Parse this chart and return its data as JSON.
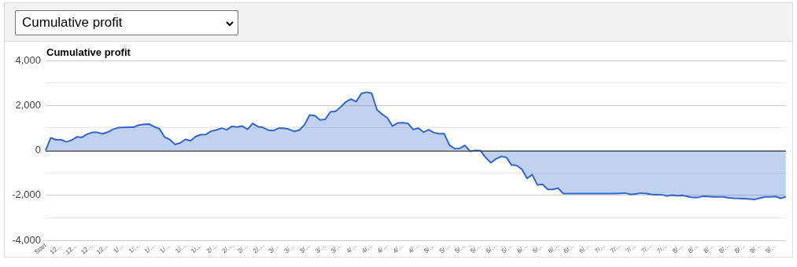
{
  "chart_data": {
    "type": "area",
    "title": "Cumulative profit",
    "subtitle": "Cumulative profit",
    "categories": [
      "Start",
      null,
      null,
      "12…",
      null,
      null,
      "12…",
      null,
      null,
      "12…",
      null,
      null,
      "12…",
      null,
      null,
      "1/…",
      null,
      null,
      "1/…",
      null,
      null,
      "1/…",
      null,
      null,
      "1/…",
      null,
      null,
      "1/…",
      null,
      null,
      "1/…",
      null,
      null,
      "2/…",
      null,
      null,
      "2/…",
      null,
      null,
      "2/…",
      null,
      null,
      "2/…",
      null,
      null,
      "3/…",
      null,
      null,
      "3/…",
      null,
      null,
      "3/…",
      null,
      null,
      "3/…",
      null,
      null,
      "3/…",
      null,
      null,
      "4/…",
      null,
      null,
      "4/…",
      null,
      null,
      "4/…",
      null,
      null,
      "4/…",
      null,
      null,
      "4/…",
      null,
      null,
      "5/…",
      null,
      null,
      "5/…",
      null,
      null,
      "5/…",
      null,
      null,
      "5/…",
      null,
      null,
      "5/…",
      null,
      null,
      "5/…",
      null,
      null,
      "6/…",
      null,
      null,
      "6/…",
      null,
      null,
      "6/…",
      null,
      null,
      "6/…",
      null,
      null,
      "6/…",
      null,
      null,
      "7/…",
      null,
      null,
      "7/…",
      null,
      null,
      "7/…",
      null,
      null,
      "7/…",
      null,
      null,
      "7/…",
      null,
      null,
      "8/…",
      null,
      null,
      "8/…",
      null,
      null,
      "8/…",
      null,
      null,
      "8/…",
      null,
      null,
      "8/…",
      null,
      null,
      "9/…",
      null,
      null,
      "9/…",
      null,
      null
    ],
    "series": [
      {
        "color": "#3366cc",
        "values": [
          0,
          560,
          470,
          470,
          380,
          450,
          600,
          580,
          720,
          800,
          800,
          740,
          810,
          940,
          1010,
          1020,
          1030,
          1030,
          1130,
          1160,
          1170,
          1050,
          960,
          590,
          480,
          260,
          330,
          490,
          430,
          620,
          700,
          710,
          860,
          910,
          990,
          920,
          1070,
          1040,
          1080,
          940,
          1200,
          1060,
          1020,
          900,
          880,
          990,
          990,
          940,
          850,
          900,
          1140,
          1570,
          1550,
          1350,
          1380,
          1710,
          1740,
          1930,
          2160,
          2280,
          2170,
          2530,
          2590,
          2540,
          1810,
          1610,
          1450,
          1080,
          1220,
          1230,
          1200,
          930,
          990,
          810,
          920,
          790,
          740,
          740,
          240,
          80,
          90,
          220,
          -40,
          0,
          -10,
          -320,
          -550,
          -380,
          -270,
          -310,
          -650,
          -670,
          -840,
          -1250,
          -1080,
          -1540,
          -1510,
          -1740,
          -1740,
          -1680,
          -1920,
          -1920,
          -1920,
          -1920,
          -1920,
          -1920,
          -1920,
          -1920,
          -1920,
          -1920,
          -1920,
          -1910,
          -1900,
          -1960,
          -1940,
          -1900,
          -1920,
          -1960,
          -1970,
          -1970,
          -2030,
          -1990,
          -2020,
          -2000,
          -2050,
          -2100,
          -2100,
          -2040,
          -2050,
          -2070,
          -2070,
          -2070,
          -2110,
          -2130,
          -2140,
          -2150,
          -2170,
          -2180,
          -2120,
          -2070,
          -2070,
          -2050,
          -2130,
          -2070
        ]
      }
    ],
    "ylim": [
      -4000,
      4000
    ],
    "yticks": [
      {
        "value": -4000,
        "label": "-4,000"
      },
      {
        "value": -3000,
        "label": null
      },
      {
        "value": -2000,
        "label": "-2,000"
      },
      {
        "value": -1000,
        "label": null
      },
      {
        "value": 0,
        "label": "0"
      },
      {
        "value": 1000,
        "label": null
      },
      {
        "value": 2000,
        "label": "2,000"
      },
      {
        "value": 3000,
        "label": null
      },
      {
        "value": 4000,
        "label": "4,000"
      }
    ],
    "ref_lines": [
      {
        "axis": "y",
        "value": 0,
        "color": "#333333"
      }
    ],
    "grid": "y",
    "legend": false,
    "marker": "none",
    "line_style": "solid"
  }
}
